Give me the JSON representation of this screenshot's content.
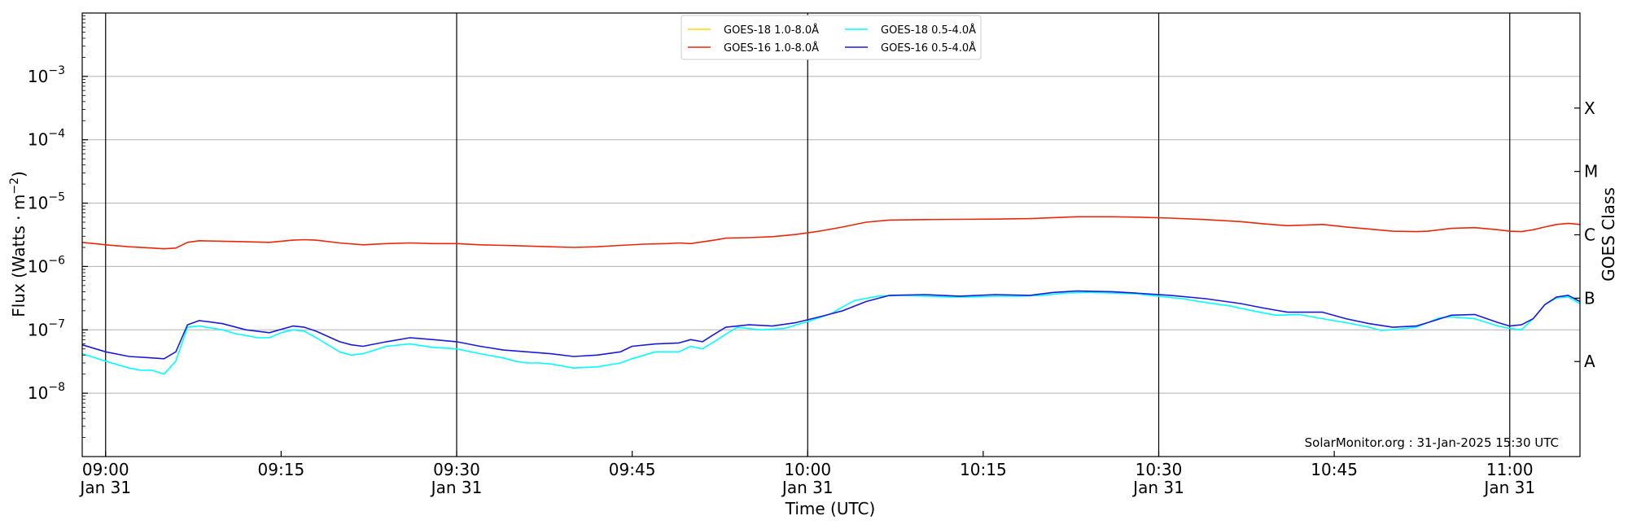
{
  "chart_data": {
    "type": "line",
    "ylabel": "Flux (Watts · m",
    "ylabel_sup": "−2",
    "ylabel_close": ")",
    "xlabel": "Time (UTC)",
    "right_label": "GOES Class",
    "y_scale": "log",
    "ylim": [
      1e-09,
      0.01
    ],
    "xlim": [
      "08:58",
      "11:06"
    ],
    "x_ticks": [
      {
        "t": "09:00",
        "label": "09:00",
        "sublabel": "Jan 31"
      },
      {
        "t": "09:15",
        "label": "09:15",
        "sublabel": ""
      },
      {
        "t": "09:30",
        "label": "09:30",
        "sublabel": "Jan 31"
      },
      {
        "t": "09:45",
        "label": "09:45",
        "sublabel": ""
      },
      {
        "t": "10:00",
        "label": "10:00",
        "sublabel": "Jan 31"
      },
      {
        "t": "10:15",
        "label": "10:15",
        "sublabel": ""
      },
      {
        "t": "10:30",
        "label": "10:30",
        "sublabel": "Jan 31"
      },
      {
        "t": "10:45",
        "label": "10:45",
        "sublabel": ""
      },
      {
        "t": "11:00",
        "label": "11:00",
        "sublabel": "Jan 31"
      }
    ],
    "y_ticks": [
      {
        "value": 1e-08,
        "base": "10",
        "exp": "−8"
      },
      {
        "value": 1e-07,
        "base": "10",
        "exp": "−7"
      },
      {
        "value": 1e-06,
        "base": "10",
        "exp": "−6"
      },
      {
        "value": 1e-05,
        "base": "10",
        "exp": "−5"
      },
      {
        "value": 0.0001,
        "base": "10",
        "exp": "−4"
      },
      {
        "value": 0.001,
        "base": "10",
        "exp": "−3"
      }
    ],
    "goes_classes": [
      {
        "label": "A",
        "value": 3.16e-08
      },
      {
        "label": "B",
        "value": 3.16e-07
      },
      {
        "label": "C",
        "value": 3.16e-06
      },
      {
        "label": "M",
        "value": 3.16e-05
      },
      {
        "label": "X",
        "value": 0.000316
      }
    ],
    "day_lines": [
      "09:00",
      "09:30",
      "10:00",
      "10:30",
      "11:00"
    ],
    "grid": "horizontal at decades",
    "legend_position": "top-center",
    "legend": [
      {
        "name": "GOES-18 1.0-8.0Å",
        "color": "#ffd700"
      },
      {
        "name": "GOES-16 1.0-8.0Å",
        "color": "#e8280a"
      },
      {
        "name": "GOES-18 0.5-4.0Å",
        "color": "#00ffff"
      },
      {
        "name": "GOES-16 0.5-4.0Å",
        "color": "#1a1adb"
      }
    ],
    "series": [
      {
        "name": "GOES-18 1.0-8.0Å",
        "color": "#ffd700",
        "x": [],
        "y": []
      },
      {
        "name": "GOES-16 1.0-8.0Å",
        "color": "#e8280a",
        "x": [
          "08:58",
          "09:00",
          "09:02",
          "09:04",
          "09:05",
          "09:06",
          "09:07",
          "09:08",
          "09:10",
          "09:12",
          "09:14",
          "09:16",
          "09:17",
          "09:18",
          "09:20",
          "09:22",
          "09:24",
          "09:26",
          "09:28",
          "09:30",
          "09:32",
          "09:34",
          "09:36",
          "09:38",
          "09:40",
          "09:42",
          "09:44",
          "09:46",
          "09:48",
          "09:49",
          "09:50",
          "09:52",
          "09:53",
          "09:55",
          "09:57",
          "09:59",
          "10:01",
          "10:03",
          "10:05",
          "10:07",
          "10:10",
          "10:13",
          "10:16",
          "10:19",
          "10:21",
          "10:23",
          "10:26",
          "10:28",
          "10:31",
          "10:34",
          "10:37",
          "10:39",
          "10:41",
          "10:44",
          "10:46",
          "10:48",
          "10:50",
          "10:52",
          "10:53",
          "10:55",
          "10:57",
          "10:59",
          "11:00",
          "11:01",
          "11:02",
          "11:03",
          "11:04",
          "11:05",
          "11:06"
        ],
        "y": [
          2.4e-06,
          2.2e-06,
          2.05e-06,
          1.95e-06,
          1.9e-06,
          1.95e-06,
          2.4e-06,
          2.55e-06,
          2.5e-06,
          2.45e-06,
          2.4e-06,
          2.6e-06,
          2.65e-06,
          2.6e-06,
          2.35e-06,
          2.2e-06,
          2.3e-06,
          2.35e-06,
          2.3e-06,
          2.3e-06,
          2.2e-06,
          2.15e-06,
          2.1e-06,
          2.05e-06,
          2e-06,
          2.05e-06,
          2.15e-06,
          2.25e-06,
          2.3e-06,
          2.35e-06,
          2.3e-06,
          2.6e-06,
          2.8e-06,
          2.85e-06,
          2.95e-06,
          3.2e-06,
          3.6e-06,
          4.2e-06,
          5e-06,
          5.4e-06,
          5.5e-06,
          5.55e-06,
          5.6e-06,
          5.7e-06,
          5.9e-06,
          6.1e-06,
          6.1e-06,
          6e-06,
          5.8e-06,
          5.5e-06,
          5.1e-06,
          4.7e-06,
          4.4e-06,
          4.6e-06,
          4.2e-06,
          3.9e-06,
          3.6e-06,
          3.55e-06,
          3.6e-06,
          4e-06,
          4.1e-06,
          3.8e-06,
          3.6e-06,
          3.55e-06,
          3.8e-06,
          4.2e-06,
          4.6e-06,
          4.8e-06,
          4.6e-06
        ]
      },
      {
        "name": "GOES-18 0.5-4.0Å",
        "color": "#00ffff",
        "x": [
          "08:58",
          "09:00",
          "09:02",
          "09:03",
          "09:04",
          "09:05",
          "09:06",
          "09:07",
          "09:08",
          "09:10",
          "09:11",
          "09:13",
          "09:14",
          "09:15",
          "09:16",
          "09:17",
          "09:18",
          "09:20",
          "09:21",
          "09:22",
          "09:23",
          "09:24",
          "09:26",
          "09:28",
          "09:30",
          "09:32",
          "09:34",
          "09:35",
          "09:36",
          "09:37",
          "09:38",
          "09:40",
          "09:42",
          "09:44",
          "09:45",
          "09:47",
          "09:49",
          "09:50",
          "09:51",
          "09:52",
          "09:53",
          "09:54",
          "09:56",
          "09:58",
          "10:00",
          "10:02",
          "10:03",
          "10:04",
          "10:06",
          "10:08",
          "10:10",
          "10:12",
          "10:14",
          "10:16",
          "10:18",
          "10:20",
          "10:22",
          "10:24",
          "10:26",
          "10:28",
          "10:30",
          "10:32",
          "10:34",
          "10:36",
          "10:38",
          "10:40",
          "10:42",
          "10:44",
          "10:46",
          "10:48",
          "10:49",
          "10:50",
          "10:52",
          "10:53",
          "10:54",
          "10:55",
          "10:57",
          "10:59",
          "11:00",
          "11:01",
          "11:02",
          "11:03",
          "11:04",
          "11:05",
          "11:06"
        ],
        "y": [
          4.2e-08,
          3.2e-08,
          2.5e-08,
          2.3e-08,
          2.3e-08,
          2e-08,
          3.2e-08,
          1.1e-07,
          1.15e-07,
          1e-07,
          8.8e-08,
          7.5e-08,
          7.5e-08,
          9e-08,
          1e-07,
          9.5e-08,
          7.5e-08,
          4.5e-08,
          4e-08,
          4.2e-08,
          4.8e-08,
          5.5e-08,
          6e-08,
          5.3e-08,
          5e-08,
          4.2e-08,
          3.6e-08,
          3.2e-08,
          3e-08,
          3e-08,
          2.9e-08,
          2.5e-08,
          2.6e-08,
          3e-08,
          3.5e-08,
          4.5e-08,
          4.5e-08,
          5.5e-08,
          5e-08,
          6.5e-08,
          8.5e-08,
          1.1e-07,
          1e-07,
          1.05e-07,
          1.35e-07,
          1.8e-07,
          2.3e-07,
          2.9e-07,
          3.4e-07,
          3.5e-07,
          3.4e-07,
          3.3e-07,
          3.3e-07,
          3.4e-07,
          3.4e-07,
          3.5e-07,
          3.8e-07,
          3.9e-07,
          3.8e-07,
          3.7e-07,
          3.4e-07,
          3.1e-07,
          2.7e-07,
          2.4e-07,
          2e-07,
          1.7e-07,
          1.75e-07,
          1.5e-07,
          1.3e-07,
          1.1e-07,
          9.8e-08,
          1e-07,
          1.1e-07,
          1.3e-07,
          1.55e-07,
          1.6e-07,
          1.5e-07,
          1.15e-07,
          1.05e-07,
          1e-07,
          1.5e-07,
          2.5e-07,
          3.2e-07,
          3.3e-07,
          2.6e-07
        ]
      },
      {
        "name": "GOES-16 0.5-4.0Å",
        "color": "#1a1adb",
        "x": [
          "08:58",
          "09:00",
          "09:02",
          "09:04",
          "09:05",
          "09:06",
          "09:07",
          "09:08",
          "09:10",
          "09:12",
          "09:14",
          "09:16",
          "09:17",
          "09:18",
          "09:20",
          "09:21",
          "09:22",
          "09:24",
          "09:26",
          "09:28",
          "09:30",
          "09:32",
          "09:34",
          "09:36",
          "09:38",
          "09:40",
          "09:42",
          "09:44",
          "09:45",
          "09:47",
          "09:49",
          "09:50",
          "09:51",
          "09:52",
          "09:53",
          "09:55",
          "09:57",
          "09:59",
          "10:01",
          "10:03",
          "10:05",
          "10:07",
          "10:10",
          "10:13",
          "10:16",
          "10:19",
          "10:21",
          "10:23",
          "10:26",
          "10:28",
          "10:31",
          "10:34",
          "10:37",
          "10:39",
          "10:41",
          "10:44",
          "10:46",
          "10:48",
          "10:50",
          "10:52",
          "10:53",
          "10:55",
          "10:57",
          "10:59",
          "11:00",
          "11:01",
          "11:02",
          "11:03",
          "11:04",
          "11:05",
          "11:06"
        ],
        "y": [
          5.8e-08,
          4.5e-08,
          3.8e-08,
          3.6e-08,
          3.5e-08,
          4.5e-08,
          1.2e-07,
          1.4e-07,
          1.25e-07,
          1e-07,
          9e-08,
          1.15e-07,
          1.1e-07,
          9.5e-08,
          6.5e-08,
          5.8e-08,
          5.5e-08,
          6.5e-08,
          7.5e-08,
          7e-08,
          6.5e-08,
          5.5e-08,
          4.8e-08,
          4.5e-08,
          4.2e-08,
          3.8e-08,
          4e-08,
          4.5e-08,
          5.5e-08,
          6e-08,
          6.2e-08,
          7e-08,
          6.5e-08,
          8.5e-08,
          1.1e-07,
          1.2e-07,
          1.15e-07,
          1.3e-07,
          1.6e-07,
          2e-07,
          2.8e-07,
          3.5e-07,
          3.6e-07,
          3.4e-07,
          3.6e-07,
          3.5e-07,
          3.9e-07,
          4.1e-07,
          4e-07,
          3.8e-07,
          3.5e-07,
          3.1e-07,
          2.6e-07,
          2.2e-07,
          1.9e-07,
          1.9e-07,
          1.5e-07,
          1.25e-07,
          1.1e-07,
          1.15e-07,
          1.3e-07,
          1.7e-07,
          1.75e-07,
          1.3e-07,
          1.15e-07,
          1.2e-07,
          1.5e-07,
          2.5e-07,
          3.3e-07,
          3.5e-07,
          2.8e-07
        ]
      }
    ],
    "annotation": "SolarMonitor.org : 31-Jan-2025 15:30 UTC"
  }
}
